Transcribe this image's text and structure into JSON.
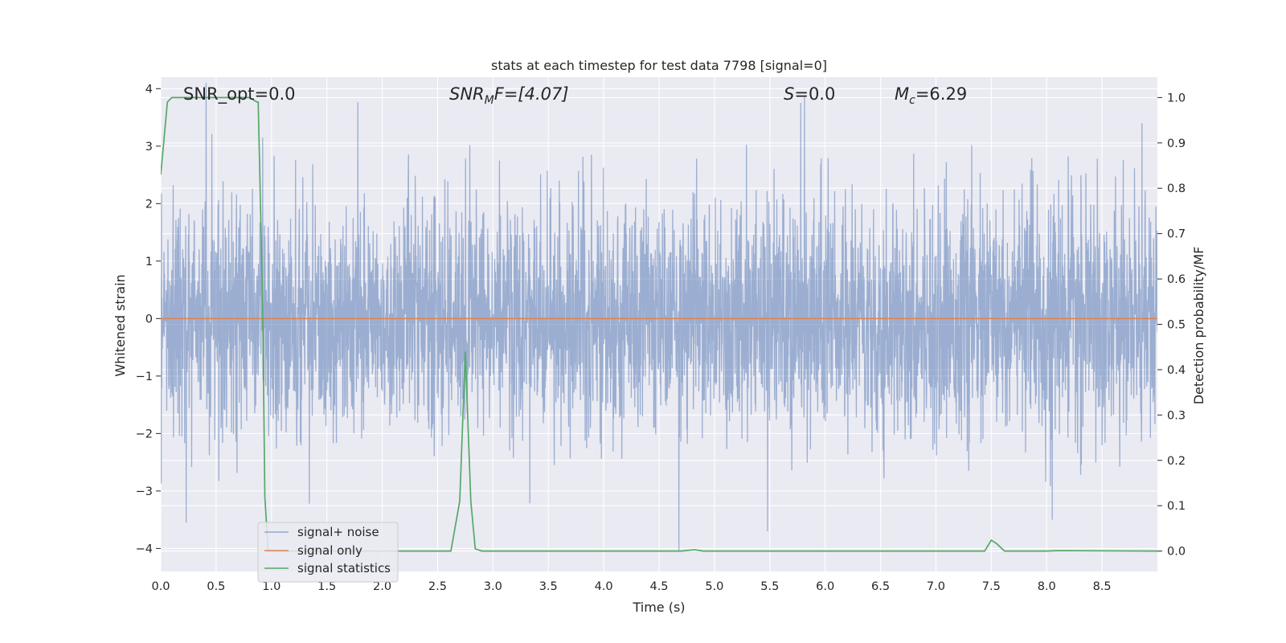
{
  "chart_data": {
    "type": "line",
    "title": "stats at each timestep for test data 7798 [signal=0]",
    "xlabel": "Time (s)",
    "ylabel": "Whitened strain",
    "y2label": "Detection probability/MF",
    "xlim": [
      0.0,
      9.0
    ],
    "ylim": [
      -4.4,
      4.2
    ],
    "y2lim": [
      -0.045,
      1.045
    ],
    "xticks": [
      "0.0",
      "0.5",
      "1.0",
      "1.5",
      "2.0",
      "2.5",
      "3.0",
      "3.5",
      "4.0",
      "4.5",
      "5.0",
      "5.5",
      "6.0",
      "6.5",
      "7.0",
      "7.5",
      "8.0",
      "8.5"
    ],
    "yticks": [
      "4",
      "3",
      "2",
      "1",
      "0",
      "−1",
      "−2",
      "−3",
      "−4"
    ],
    "y2ticks": [
      "1.0",
      "0.9",
      "0.8",
      "0.7",
      "0.6",
      "0.5",
      "0.4",
      "0.3",
      "0.2",
      "0.1",
      "0.0"
    ],
    "grid": true,
    "legend_position": "lower-left",
    "colors": {
      "background": "#eaeaf2",
      "grid": "#ffffff",
      "noise": "#4c72b0",
      "signal": "#dd8452",
      "statistics": "#55a868"
    },
    "annotations": {
      "snr_opt": "SNR_opt=0.0",
      "snr_mf_base": "SNR",
      "snr_mf_sub": "M",
      "snr_mf_rest": "F=[4.07]",
      "s_var": "S",
      "s_rest": "=0.0",
      "mc_base": "M",
      "mc_sub": "c",
      "mc_rest": "=6.29"
    },
    "series": [
      {
        "name": "signal+ noise",
        "axis": "left",
        "description": "white noise, standard deviation ~1, sampled densely over 0-9 s",
        "noise_std": 1.0,
        "duration": 9.0,
        "peaks": [
          {
            "x": 0.41,
            "y": 4.1
          },
          {
            "x": 0.92,
            "y": 3.15
          },
          {
            "x": 2.75,
            "y": -0.9
          },
          {
            "x": 5.78,
            "y": 3.75
          },
          {
            "x": 4.68,
            "y": -4.05
          },
          {
            "x": 5.48,
            "y": -3.7
          },
          {
            "x": 8.86,
            "y": 3.4
          },
          {
            "x": 0.23,
            "y": -3.55
          },
          {
            "x": 8.05,
            "y": -3.5
          }
        ]
      },
      {
        "name": "signal only",
        "axis": "left",
        "x": [
          0.0,
          9.0
        ],
        "y": [
          0.0,
          0.0
        ]
      },
      {
        "name": "signal statistics",
        "axis": "right",
        "x": [
          0.0,
          0.06,
          0.1,
          0.2,
          0.4,
          0.6,
          0.8,
          0.87,
          0.88,
          0.92,
          0.94,
          0.97,
          1.0,
          2.0,
          2.5,
          2.62,
          2.7,
          2.75,
          2.8,
          2.84,
          2.9,
          3.0,
          4.0,
          4.7,
          4.82,
          4.9,
          5.0,
          6.0,
          7.0,
          7.44,
          7.5,
          7.55,
          7.62,
          7.7,
          8.0,
          8.1,
          9.0
        ],
        "y": [
          0.83,
          0.99,
          1.0,
          1.0,
          1.0,
          1.0,
          1.0,
          0.99,
          0.99,
          0.55,
          0.12,
          0.0,
          0.0,
          0.0,
          0.0,
          0.0,
          0.11,
          0.44,
          0.11,
          0.005,
          0.0,
          0.0,
          0.0,
          0.0,
          0.003,
          0.0,
          0.0,
          0.0,
          0.0,
          0.0,
          0.024,
          0.016,
          0.0,
          0.0,
          0.0,
          0.001,
          0.0
        ]
      }
    ]
  }
}
